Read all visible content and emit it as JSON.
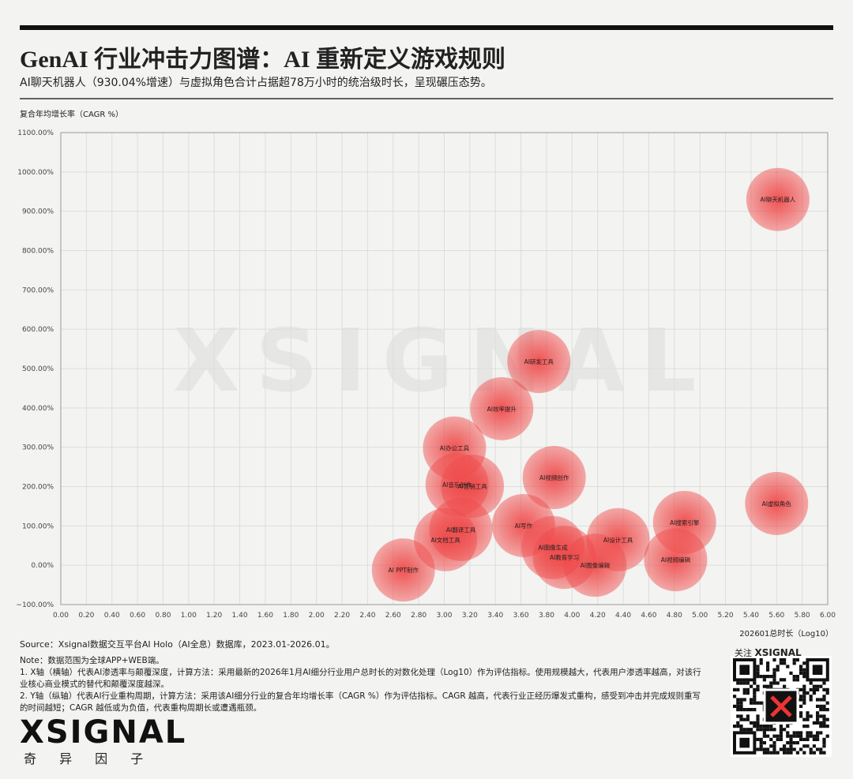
{
  "header": {
    "title": "GenAI 行业冲击力图谱：AI 重新定义游戏规则",
    "subtitle": "AI聊天机器人（930.04%增速）与虚拟角色合计占据超78万小时的统治级时长，呈现碾压态势。"
  },
  "chart_data": {
    "type": "scatter",
    "y_label": "复合年均增长率（CAGR %）",
    "x_label": "202601总时长（Log10）",
    "color": "#ef4a4a",
    "grid": true,
    "labels": [
      "AI聊天机器人",
      "AI虚拟角色",
      "AI研发工具",
      "AI效率提升",
      "AI办公工具",
      "AI音乐创作",
      "AI营销工具",
      "AI视频创作",
      "AI写作",
      "AI翻译工具",
      "AI文档工具",
      "AI PPT制作",
      "AI图像生成",
      "AI教育学习",
      "AI图像编辑",
      "AI设计工具",
      "AI搜索引擎",
      "AI视频编辑"
    ],
    "x": [
      5.61,
      5.6,
      3.74,
      3.45,
      3.08,
      3.1,
      3.22,
      3.86,
      3.62,
      3.13,
      3.01,
      2.68,
      3.85,
      3.94,
      4.18,
      4.36,
      4.88,
      4.81
    ],
    "values": [
      930.04,
      157,
      518,
      398,
      298,
      205,
      201,
      223,
      101,
      91,
      65,
      -12,
      45,
      20,
      0,
      65,
      109,
      14
    ],
    "xlim": [
      0,
      6
    ],
    "ylim": [
      -100,
      1100
    ],
    "xticks": [
      {
        "value": 0,
        "label": "0.00"
      },
      {
        "value": 0.2,
        "label": "0.20"
      },
      {
        "value": 0.4,
        "label": "0.40"
      },
      {
        "value": 0.6,
        "label": "0.60"
      },
      {
        "value": 0.8,
        "label": "0.80"
      },
      {
        "value": 1,
        "label": "1.00"
      },
      {
        "value": 1.2,
        "label": "1.20"
      },
      {
        "value": 1.4,
        "label": "1.40"
      },
      {
        "value": 1.6,
        "label": "1.60"
      },
      {
        "value": 1.8,
        "label": "1.80"
      },
      {
        "value": 2,
        "label": "2.00"
      },
      {
        "value": 2.2,
        "label": "2.20"
      },
      {
        "value": 2.4,
        "label": "2.40"
      },
      {
        "value": 2.6,
        "label": "2.60"
      },
      {
        "value": 2.8,
        "label": "2.80"
      },
      {
        "value": 3,
        "label": "3.00"
      },
      {
        "value": 3.2,
        "label": "3.20"
      },
      {
        "value": 3.4,
        "label": "3.40"
      },
      {
        "value": 3.6,
        "label": "3.60"
      },
      {
        "value": 3.8,
        "label": "3.80"
      },
      {
        "value": 4,
        "label": "4.00"
      },
      {
        "value": 4.2,
        "label": "4.20"
      },
      {
        "value": 4.4,
        "label": "4.40"
      },
      {
        "value": 4.6,
        "label": "4.60"
      },
      {
        "value": 4.8,
        "label": "4.80"
      },
      {
        "value": 5,
        "label": "5.00"
      },
      {
        "value": 5.2,
        "label": "5.20"
      },
      {
        "value": 5.4,
        "label": "5.40"
      },
      {
        "value": 5.6,
        "label": "5.60"
      },
      {
        "value": 5.8,
        "label": "5.80"
      },
      {
        "value": 6,
        "label": "6.00"
      }
    ],
    "yticks": [
      {
        "value": -100,
        "label": "−100.00%"
      },
      {
        "value": 0,
        "label": "0.00%"
      },
      {
        "value": 100,
        "label": "100.00%"
      },
      {
        "value": 200,
        "label": "200.00%"
      },
      {
        "value": 300,
        "label": "300.00%"
      },
      {
        "value": 400,
        "label": "400.00%"
      },
      {
        "value": 500,
        "label": "500.00%"
      },
      {
        "value": 600,
        "label": "600.00%"
      },
      {
        "value": 700,
        "label": "700.00%"
      },
      {
        "value": 800,
        "label": "800.00%"
      },
      {
        "value": 900,
        "label": "900.00%"
      },
      {
        "value": 1000,
        "label": "1000.00%"
      },
      {
        "value": 1100,
        "label": "1100.00%"
      }
    ]
  },
  "footer": {
    "source": "Source：Xsignal数据交互平台AI Holo（AI全息）数据库，2023.01-2026.01。",
    "notes": [
      "Note：数据范围为全球APP+WEB端。",
      "1. X轴（横轴）代表AI渗透率与颠覆深度，计算方法：采用最新的2026年1月AI细分行业用户总时长的对数化处理（Log10）作为评估指标。使用规模越大，代表用户渗透率越高，对该行业核心商业模式的替代和颠覆深度越深。",
      "2. Y轴（纵轴）代表AI行业重构周期，计算方法：采用该AI细分行业的复合年均增长率（CAGR %）作为评估指标。CAGR 越高，代表行业正经历爆发式重构，感受到冲击并完成规则重写的时间越短；CAGR 越低或为负值，代表重构周期长或遭遇瓶颈。"
    ]
  },
  "branding": {
    "logo": "XSIGNAL",
    "logo_sub": "奇 异 因 子",
    "follow": "关注"
  }
}
